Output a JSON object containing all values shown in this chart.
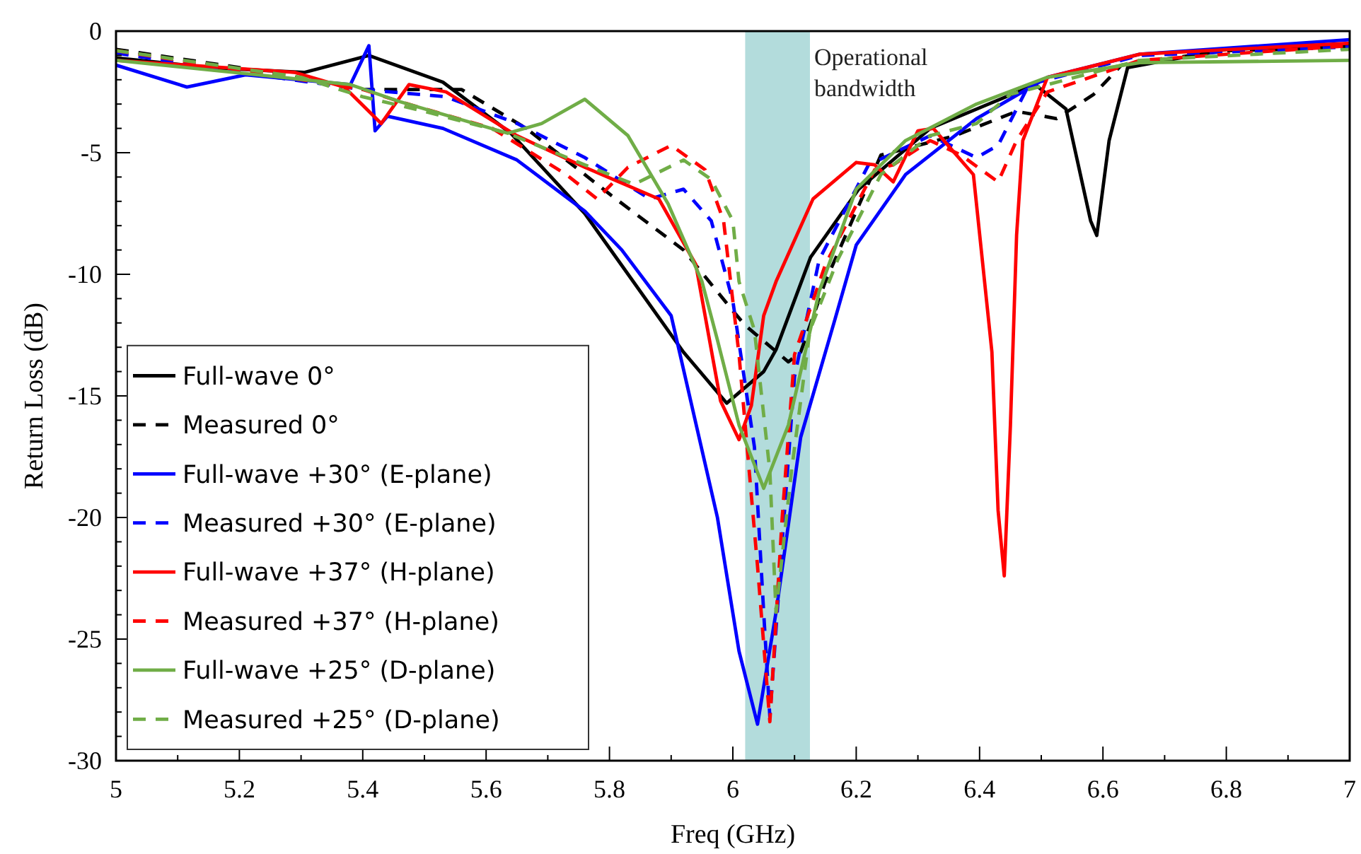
{
  "chart_data": {
    "type": "line",
    "xlabel": "Freq (GHz)",
    "ylabel": "Return Loss (dB)",
    "xlim": [
      5,
      7
    ],
    "ylim": [
      -30,
      0
    ],
    "xticks": [
      5,
      {
        "value": 5.1,
        "label": null
      },
      5.2,
      {
        "value": 5.3,
        "label": null
      },
      5.4,
      {
        "value": 5.5,
        "label": null
      },
      5.6,
      {
        "value": 5.7,
        "label": null
      },
      5.8,
      {
        "value": 5.9,
        "label": null
      },
      6,
      {
        "value": 6.1,
        "label": null
      },
      6.2,
      {
        "value": 6.3,
        "label": null
      },
      6.4,
      {
        "value": 6.5,
        "label": null
      },
      6.6,
      {
        "value": 6.7,
        "label": null
      },
      6.8,
      {
        "value": 6.9,
        "label": null
      },
      7
    ],
    "yticks": [
      -30,
      {
        "value": -29,
        "label": null
      },
      {
        "value": -28,
        "label": null
      },
      {
        "value": -27,
        "label": null
      },
      {
        "value": -26,
        "label": null
      },
      -25,
      {
        "value": -24,
        "label": null
      },
      {
        "value": -23,
        "label": null
      },
      {
        "value": -22,
        "label": null
      },
      {
        "value": -21,
        "label": null
      },
      -20,
      {
        "value": -19,
        "label": null
      },
      {
        "value": -18,
        "label": null
      },
      {
        "value": -17,
        "label": null
      },
      {
        "value": -16,
        "label": null
      },
      -15,
      {
        "value": -14,
        "label": null
      },
      {
        "value": -13,
        "label": null
      },
      {
        "value": -12,
        "label": null
      },
      {
        "value": -11,
        "label": null
      },
      -10,
      {
        "value": -9,
        "label": null
      },
      {
        "value": -8,
        "label": null
      },
      {
        "value": -7,
        "label": null
      },
      {
        "value": -6,
        "label": null
      },
      -5,
      {
        "value": -4,
        "label": null
      },
      {
        "value": -3,
        "label": null
      },
      {
        "value": -2,
        "label": null
      },
      {
        "value": -1,
        "label": null
      },
      0
    ],
    "grid": false,
    "legend": "bottom left",
    "marker": "none",
    "bands": [
      {
        "axis": "x",
        "from": 6.02,
        "to": 6.125,
        "label": "Operational bandwidth",
        "color": "#b3dcdc"
      }
    ],
    "series": [
      {
        "name": "Full-wave 0°",
        "color": "#000000",
        "line_style": "solid",
        "x": [
          5,
          5.15,
          5.305,
          5.41,
          5.53,
          5.64,
          5.76,
          5.92,
          5.99,
          6.05,
          6.07,
          6.126,
          6.204,
          6.32,
          6.49,
          6.54,
          6.58,
          6.59,
          6.61,
          6.64,
          6.8,
          7
        ],
        "values": [
          -1.1,
          -1.5,
          -1.7,
          -1.0,
          -2.1,
          -4.2,
          -7.5,
          -13.2,
          -15.3,
          -14,
          -13.1,
          -9.3,
          -6.5,
          -4.0,
          -2.2,
          -3.2,
          -7.8,
          -8.4,
          -4.5,
          -1.5,
          -0.75,
          -0.6
        ]
      },
      {
        "name": "Measured 0°",
        "color": "#000000",
        "line_style": "dashed",
        "x": [
          5,
          5.2,
          5.4,
          5.56,
          5.665,
          5.8,
          5.92,
          6.0,
          6.02,
          6.09,
          6.11,
          6.15,
          6.24,
          6.36,
          6.46,
          6.525,
          6.585,
          6.63,
          6.8,
          7
        ],
        "values": [
          -0.75,
          -1.5,
          -2.4,
          -2.4,
          -4.0,
          -6.7,
          -9.0,
          -11.5,
          -12.1,
          -13.6,
          -13.2,
          -10.3,
          -5.1,
          -4.3,
          -3.3,
          -3.6,
          -2.6,
          -1.4,
          -0.8,
          -0.7
        ]
      },
      {
        "name": "Full-wave +30° (E-plane)",
        "color": "#0000ff",
        "line_style": "solid",
        "x": [
          5,
          5.115,
          5.21,
          5.38,
          5.41,
          5.42,
          5.44,
          5.53,
          5.65,
          5.76,
          5.82,
          5.9,
          5.975,
          6.01,
          6.04,
          6.07,
          6.11,
          6.165,
          6.2,
          6.28,
          6.395,
          6.51,
          6.66,
          7
        ],
        "values": [
          -1.4,
          -2.3,
          -1.8,
          -2.2,
          -0.6,
          -4.1,
          -3.5,
          -4.0,
          -5.3,
          -7.4,
          -9.0,
          -11.7,
          -20,
          -25.5,
          -28.5,
          -23.9,
          -16.7,
          -11.9,
          -8.8,
          -5.9,
          -3.6,
          -1.9,
          -0.95,
          -0.35
        ]
      },
      {
        "name": "Measured +30° (E-plane)",
        "color": "#0000ff",
        "line_style": "dashed",
        "x": [
          5,
          5.2,
          5.4,
          5.535,
          5.65,
          5.76,
          5.865,
          5.92,
          5.965,
          6.0,
          6.035,
          6.05,
          6.06,
          6.08,
          6.1,
          6.14,
          6.22,
          6.32,
          6.395,
          6.43,
          6.48,
          6.66,
          7
        ],
        "values": [
          -0.9,
          -1.7,
          -2.4,
          -2.7,
          -3.8,
          -5.2,
          -6.9,
          -6.5,
          -7.8,
          -11.1,
          -17.1,
          -23.9,
          -28.2,
          -21,
          -14.2,
          -9.4,
          -5.5,
          -4.3,
          -5.2,
          -4.7,
          -2.2,
          -1.0,
          -0.65
        ]
      },
      {
        "name": "Full-wave +37° (H-plane)",
        "color": "#ff0000",
        "line_style": "solid",
        "x": [
          5,
          5.29,
          5.37,
          5.43,
          5.475,
          5.535,
          5.65,
          5.76,
          5.88,
          5.94,
          5.98,
          6.01,
          6.03,
          6.05,
          6.07,
          6.13,
          6.2,
          6.23,
          6.26,
          6.3,
          6.325,
          6.39,
          6.42,
          6.43,
          6.44,
          6.45,
          6.46,
          6.47,
          6.51,
          6.66,
          7
        ],
        "values": [
          -1.2,
          -1.7,
          -2.3,
          -3.8,
          -2.2,
          -2.5,
          -4.3,
          -5.6,
          -6.9,
          -9.6,
          -15.2,
          -16.8,
          -15.4,
          -11.7,
          -10.3,
          -6.9,
          -5.4,
          -5.5,
          -6.2,
          -4.1,
          -4.0,
          -5.9,
          -13.2,
          -19.7,
          -22.4,
          -16.2,
          -8.4,
          -4.5,
          -1.9,
          -0.95,
          -0.5
        ]
      },
      {
        "name": "Measured +37° (H-plane)",
        "color": "#ff0000",
        "line_style": "dashed",
        "x": [
          5,
          5.2,
          5.4,
          5.46,
          5.61,
          5.73,
          5.78,
          5.83,
          5.9,
          5.955,
          5.985,
          6.01,
          6.04,
          6.06,
          6.08,
          6.1,
          6.15,
          6.23,
          6.26,
          6.32,
          6.37,
          6.43,
          6.46,
          6.51,
          6.66,
          7
        ],
        "values": [
          -0.8,
          -1.6,
          -2.4,
          -2.9,
          -4.0,
          -5.9,
          -6.9,
          -5.6,
          -4.7,
          -5.7,
          -7.8,
          -13.3,
          -22,
          -28.4,
          -20,
          -13.3,
          -9.6,
          -5.7,
          -5.5,
          -4.5,
          -5.1,
          -6.2,
          -4.5,
          -2.5,
          -1.2,
          -0.6
        ]
      },
      {
        "name": "Full-wave +25° (D-plane)",
        "color": "#70ad47",
        "line_style": "solid",
        "x": [
          5,
          5.23,
          5.38,
          5.46,
          5.635,
          5.69,
          5.76,
          5.83,
          5.895,
          5.95,
          5.975,
          6.01,
          6.05,
          6.09,
          6.14,
          6.2,
          6.28,
          6.395,
          6.51,
          6.66,
          7
        ],
        "values": [
          -1.2,
          -1.8,
          -2.2,
          -2.9,
          -4.2,
          -3.8,
          -2.8,
          -4.3,
          -7.1,
          -10.3,
          -12.7,
          -16.2,
          -18.8,
          -16.2,
          -10.7,
          -6.5,
          -4.5,
          -3.0,
          -1.9,
          -1.3,
          -1.2
        ]
      },
      {
        "name": "Measured +25° (D-plane)",
        "color": "#70ad47",
        "line_style": "dashed",
        "x": [
          5,
          5.3,
          5.4,
          5.5,
          5.635,
          5.76,
          5.84,
          5.92,
          5.965,
          6.0,
          6.01,
          6.035,
          6.06,
          6.07,
          6.095,
          6.125,
          6.17,
          6.24,
          6.32,
          6.395,
          6.45,
          6.66,
          7
        ],
        "values": [
          -0.8,
          -1.9,
          -2.7,
          -3.3,
          -4.2,
          -5.5,
          -6.3,
          -5.3,
          -6.1,
          -7.8,
          -10.3,
          -12.3,
          -18.1,
          -23.9,
          -18.1,
          -12.3,
          -9.4,
          -5.9,
          -4.3,
          -3.8,
          -2.6,
          -1.2,
          -0.75
        ]
      }
    ]
  }
}
